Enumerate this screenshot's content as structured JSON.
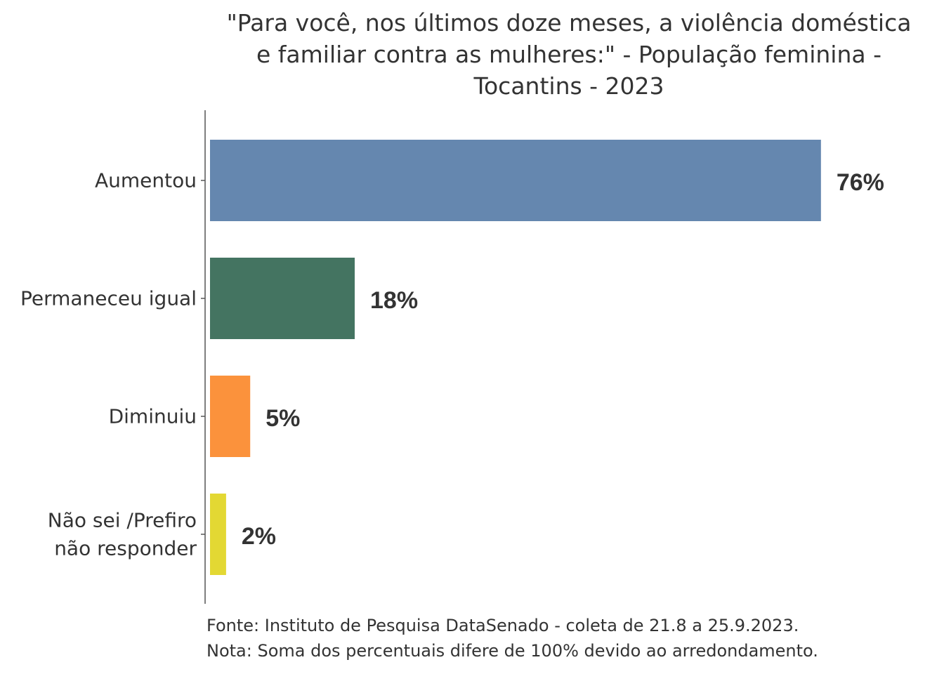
{
  "chart_data": {
    "type": "bar",
    "orientation": "horizontal",
    "title_lines": [
      "\"Para você, nos últimos doze meses, a violência doméstica",
      "e familiar contra as mulheres:\" - População feminina -",
      "Tocantins - 2023"
    ],
    "categories": [
      [
        "Aumentou"
      ],
      [
        "Permaneceu igual"
      ],
      [
        "Diminuiu"
      ],
      [
        "Não sei /Prefiro",
        "não responder"
      ]
    ],
    "values": [
      76,
      18,
      5,
      2
    ],
    "value_labels": [
      "76%",
      "18%",
      "5%",
      "2%"
    ],
    "colors": [
      "#6587AF",
      "#447461",
      "#FB923C",
      "#E3D833"
    ],
    "xlim": [
      0,
      100
    ],
    "grid": false,
    "legend": "none",
    "caption_lines": [
      "Fonte: Instituto de Pesquisa DataSenado - coleta de 21.8 a 25.9.2023.",
      "Nota: Soma dos percentuais difere de 100% devido ao arredondamento."
    ]
  }
}
